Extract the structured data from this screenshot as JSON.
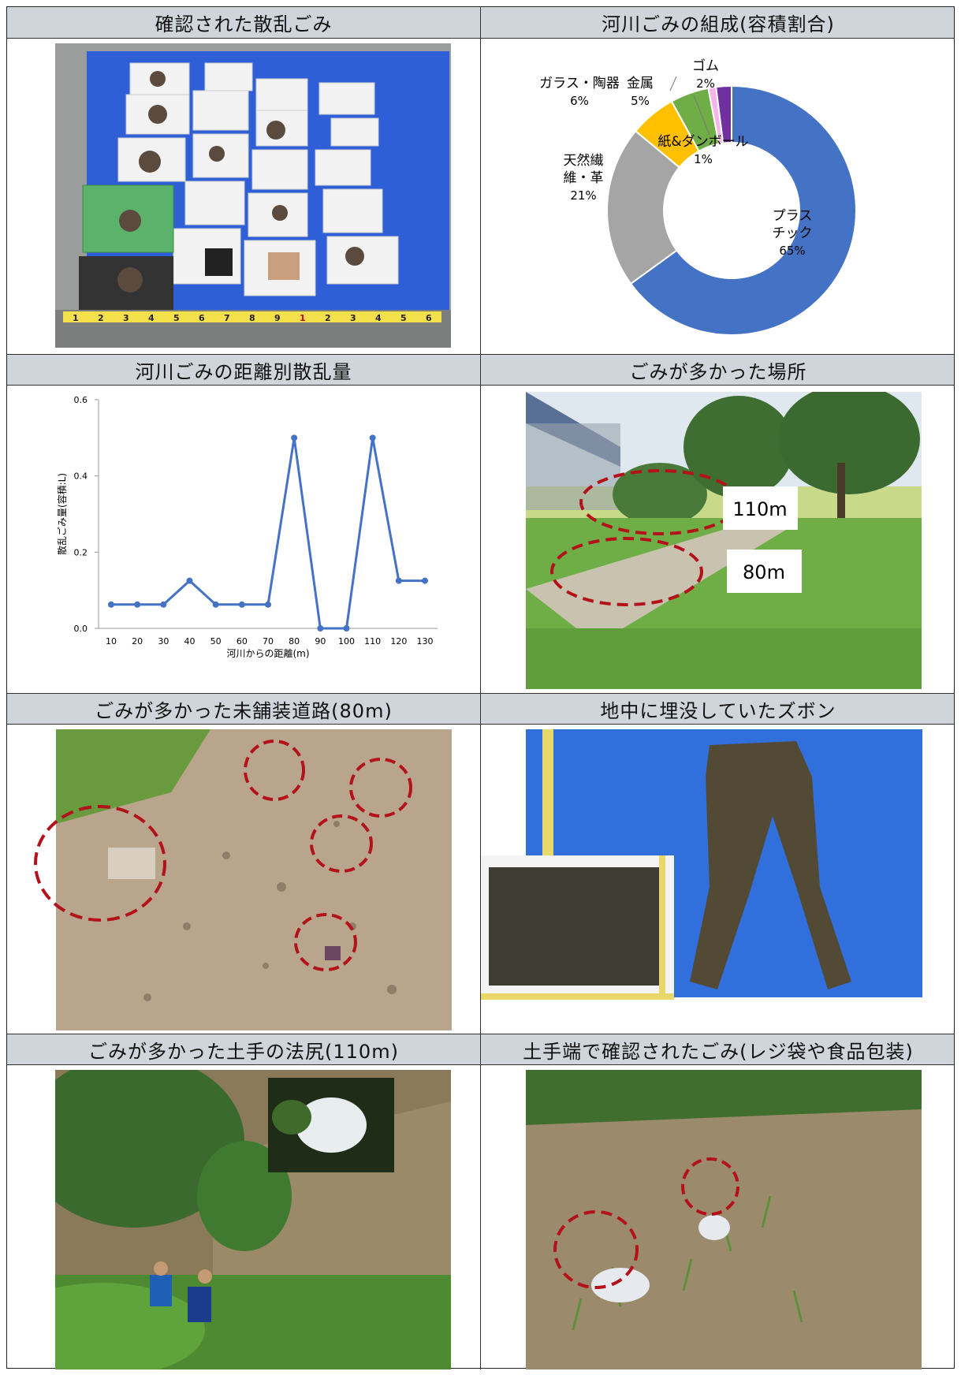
{
  "panels": {
    "p1_title": "確認された散乱ごみ",
    "p2_title": "河川ごみの組成(容積割合)",
    "p3_title": "河川ごみの距離別散乱量",
    "p4_title": "ごみが多かった場所",
    "p5_title": "ごみが多かった未舗装道路(80m)",
    "p6_title": "地中に埋没していたズボン",
    "p7_title": "ごみが多かった土手の法尻(110m)",
    "p8_title": "土手端で確認されたごみ(レジ袋や食品包装)"
  },
  "photo_labels": {
    "label_110": "110m",
    "label_80": "80m",
    "ruler_digits": [
      "1",
      "2",
      "3",
      "4",
      "5",
      "6",
      "7",
      "8",
      "9",
      "1",
      "2",
      "3",
      "4",
      "5",
      "6"
    ]
  },
  "chart_data": [
    {
      "type": "pie",
      "title": "",
      "slices": [
        {
          "label": "プラスチック",
          "label_lines": [
            "プラス",
            "チック"
          ],
          "value": 65,
          "pct": "65%",
          "color": "#4472c4"
        },
        {
          "label": "天然繊維・革",
          "label_lines": [
            "天然繊",
            "維・革"
          ],
          "value": 21,
          "pct": "21%",
          "color": "#a5a5a5"
        },
        {
          "label": "ガラス・陶器",
          "label_lines": [
            "ガラス・陶器"
          ],
          "value": 6,
          "pct": "6%",
          "color": "#ffc000"
        },
        {
          "label": "金属",
          "label_lines": [
            "金属"
          ],
          "value": 5,
          "pct": "5%",
          "color": "#70ad47"
        },
        {
          "label": "紙&ダンボール",
          "label_lines": [
            "紙&ダンボール"
          ],
          "value": 1,
          "pct": "1%",
          "color": "#f4b6e8"
        },
        {
          "label": "ゴム",
          "label_lines": [
            "ゴム"
          ],
          "value": 2,
          "pct": "2%",
          "color": "#7030a0"
        }
      ],
      "donut": true
    },
    {
      "type": "line",
      "title": "",
      "xlabel": "河川からの距離(m)",
      "ylabel": "散乱ごみ量(容積:L)",
      "x": [
        10,
        20,
        30,
        40,
        50,
        60,
        70,
        80,
        90,
        100,
        110,
        120,
        130
      ],
      "values": [
        0.0625,
        0.0625,
        0.0625,
        0.125,
        0.0625,
        0.0625,
        0.0625,
        0.5,
        0,
        0,
        0.5,
        0.125,
        0.125
      ],
      "ylim": [
        0,
        0.6
      ],
      "yticks": [
        "0.0",
        "0.2",
        "0.4",
        "0.6"
      ],
      "color": "#4472c4",
      "grid": false
    }
  ]
}
